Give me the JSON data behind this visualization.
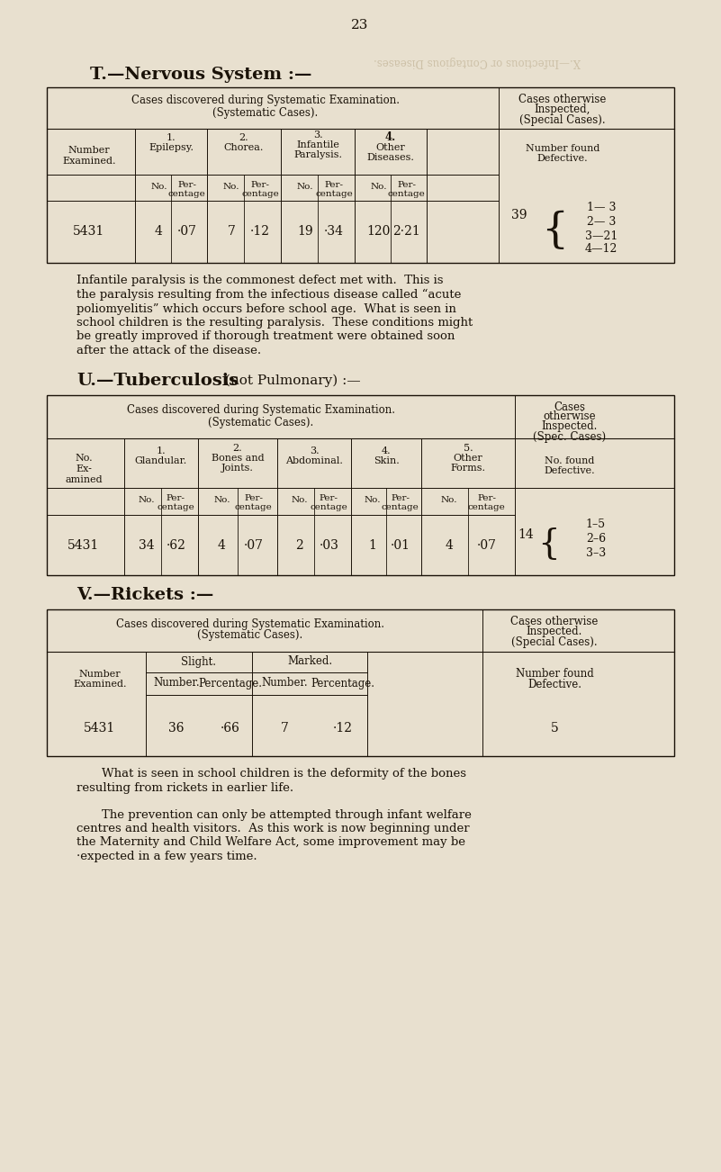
{
  "bg_color": "#e8e0cf",
  "page_number": "23",
  "watermark_text": "X.—Infectious or Contagious Diseases.",
  "section_T_title": "T.—Nervous System :—",
  "section_U_title": "U.—Tuberculosis",
  "section_U_subtitle": " (not Pulmonary) :—",
  "section_V_title": "V.—Rickets :—",
  "para1_lines": [
    "Infantile paralysis is the commonest defect met with.  This is",
    "the paralysis resulting from the infectious disease called “acute",
    "poliomyelitis” which occurs before school age.  What is seen in",
    "school children is the resulting paralysis.  These conditions might",
    "be greatly improved if thorough treatment were obtained soon",
    "after the attack of the disease."
  ],
  "para2_lines": [
    "What is seen in school children is the deformity of the bones",
    "resulting from rickets in earlier life."
  ],
  "para3_lines": [
    "The prevention can only be attempted through infant welfare",
    "centres and health visitors.  As this work is now beginning under",
    "the Maternity and Child Welfare Act, some improvement may be",
    "·expected in a few years time."
  ]
}
